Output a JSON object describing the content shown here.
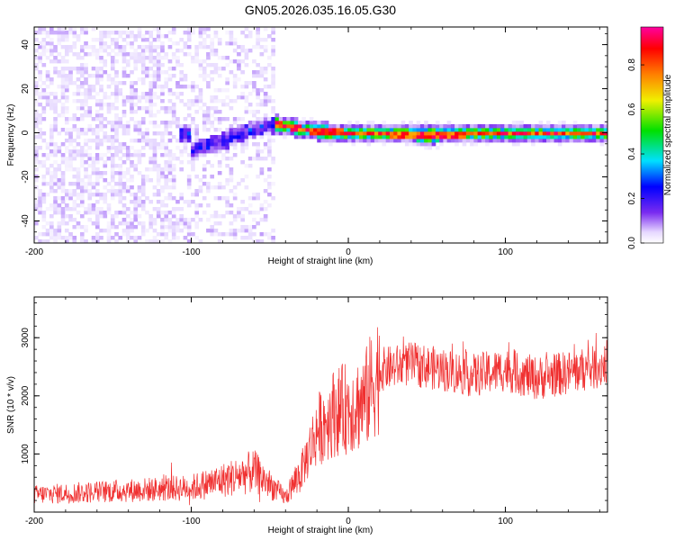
{
  "title": "GN05.2026.035.16.05.G30",
  "chart_data": [
    {
      "type": "heatmap",
      "title": "",
      "xlabel": "Height of straight line (km)",
      "ylabel": "Frequency (Hz)",
      "xlim": [
        -200,
        165
      ],
      "ylim": [
        -50,
        48
      ],
      "x_ticks": [
        -200,
        -100,
        0,
        100
      ],
      "y_ticks": [
        -40,
        -20,
        0,
        20,
        40
      ],
      "colorbar": {
        "label": "Normalized spectral amplitude",
        "range": [
          0,
          0.97
        ],
        "ticks": [
          0.0,
          0.2,
          0.4,
          0.6,
          0.8
        ],
        "colormap": [
          "#ffffff",
          "#e6d8ff",
          "#7a2cf0",
          "#0000ff",
          "#00e0ff",
          "#00e000",
          "#f0f000",
          "#ff8000",
          "#ff0000",
          "#ff00a0"
        ]
      },
      "ridge": [
        {
          "x": -100,
          "freq": -8
        },
        {
          "x": -80,
          "freq": -4
        },
        {
          "x": -60,
          "freq": 2
        },
        {
          "x": -45,
          "freq": 4
        },
        {
          "x": -25,
          "freq": 1
        },
        {
          "x": 0,
          "freq": 0
        },
        {
          "x": 50,
          "freq": -1
        },
        {
          "x": 100,
          "freq": 0
        },
        {
          "x": 165,
          "freq": 0
        }
      ]
    },
    {
      "type": "line",
      "title": "",
      "xlabel": "Height of straight line (km)",
      "ylabel": "SNR (10 * v/v)",
      "xlim": [
        -200,
        165
      ],
      "ylim": [
        0,
        3700
      ],
      "x_ticks": [
        -200,
        -100,
        0,
        100
      ],
      "y_ticks": [
        1000,
        2000,
        3000
      ],
      "line_color": "#f03030",
      "series": [
        {
          "x": [
            -200,
            -150,
            -100,
            -80,
            -60,
            -40,
            -30,
            -20,
            -10,
            0,
            10,
            20,
            40,
            60,
            80,
            100,
            120,
            140,
            160,
            165
          ],
          "values": [
            300,
            360,
            420,
            550,
            700,
            250,
            700,
            1400,
            1700,
            1800,
            1900,
            2450,
            2550,
            2450,
            2350,
            2450,
            2300,
            2400,
            2500,
            2600
          ]
        }
      ]
    }
  ]
}
